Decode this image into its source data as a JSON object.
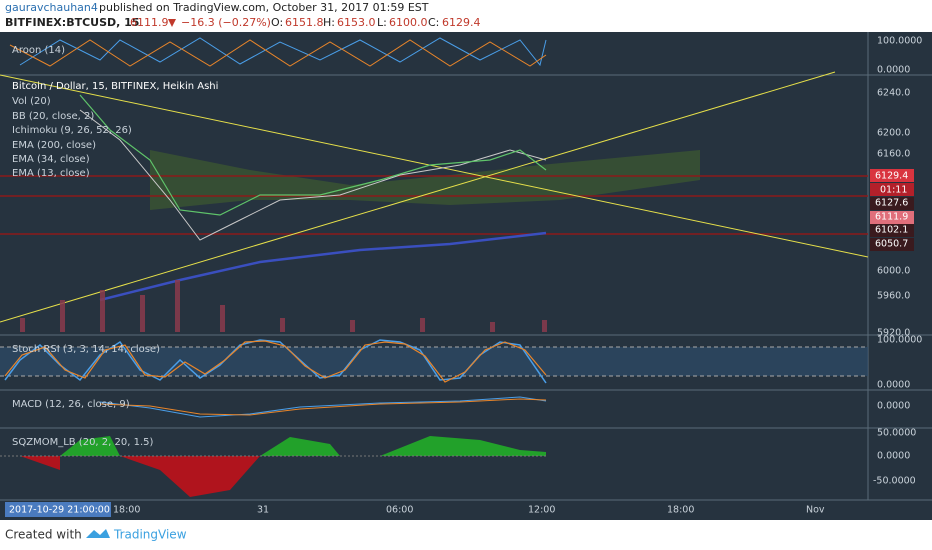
{
  "header": {
    "author": "gauravchauhan4",
    "published": "published on TradingView.com, October 31, 2017 01:59 EST",
    "symbol": "BITFINEX:BTCUSD, 15",
    "last": "6111.9",
    "change": "−16.3 (−0.27%)",
    "open_label": "O:",
    "open": "6151.8",
    "high_label": "H:",
    "high": "6153.0",
    "low_label": "L:",
    "low": "6100.0",
    "close_label": "C:",
    "close": "6129.4"
  },
  "aroon": {
    "label": "Aroon (14)",
    "axis": [
      "100.0000",
      "0.0000"
    ]
  },
  "main": {
    "legend": [
      "Bitcoin / Dollar, 15, BITFINEX, Heikin Ashi",
      "Vol (20)",
      "BB (20, close, 2)",
      "Ichimoku (9, 26, 52, 26)",
      "EMA (200, close)",
      "EMA (34, close)",
      "EMA (13, close)"
    ],
    "axis": [
      "6240.0",
      "6200.0",
      "6160.0",
      "6000.0",
      "5960.0",
      "5920.0"
    ],
    "price_tags": [
      "6129.4",
      "01:11",
      "6127.6",
      "6111.9",
      "6102.1",
      "6050.7"
    ]
  },
  "stoch_rsi": {
    "label": "Stoch RSI (3, 3, 14, 14, close)",
    "axis": [
      "100.0000",
      "0.0000"
    ]
  },
  "macd": {
    "label": "MACD (12, 26, close, 9)",
    "axis": [
      "0.0000"
    ]
  },
  "sqzmom": {
    "label": "SQZMOM_LB (20, 2, 20, 1.5)",
    "axis": [
      "50.0000",
      "0.0000",
      "-50.0000"
    ]
  },
  "time_axis": [
    "2017-10-29 21:00:00",
    "18:00",
    "31",
    "06:00",
    "12:00",
    "18:00",
    "Nov"
  ],
  "footer": {
    "created": "Created with",
    "brand": "TradingView"
  }
}
